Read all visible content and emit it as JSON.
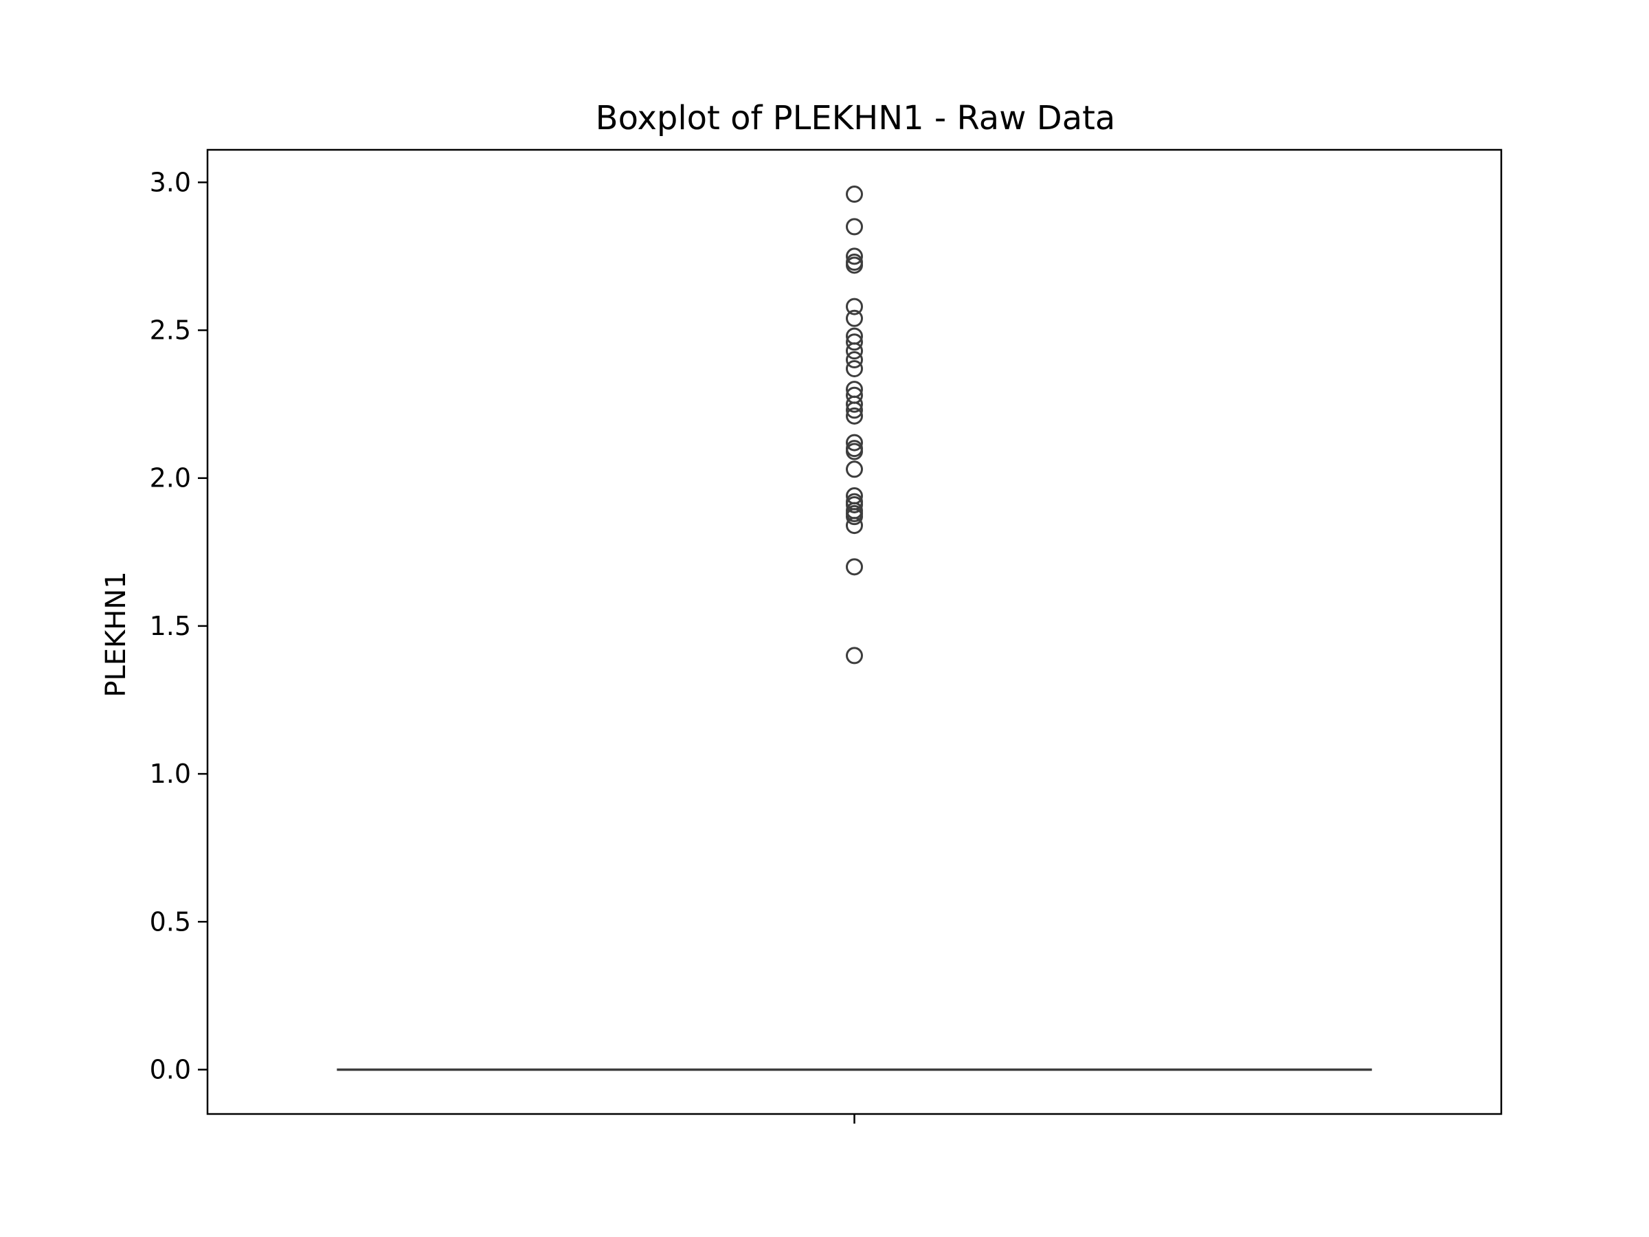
{
  "chart_data": {
    "type": "box",
    "title": "Boxplot of PLEKHN1 - Raw Data",
    "xlabel": "",
    "ylabel": "PLEKHN1",
    "ylim": [
      -0.15,
      3.11
    ],
    "yticks": [
      0.0,
      0.5,
      1.0,
      1.5,
      2.0,
      2.5,
      3.0
    ],
    "ytick_labels": [
      "0.0",
      "0.5",
      "1.0",
      "1.5",
      "2.0",
      "2.5",
      "3.0"
    ],
    "xticks": [
      ""
    ],
    "grid": false,
    "legend": false,
    "colors": {
      "box_line": "#3d3d3d",
      "frame": "#000000",
      "text": "#000000"
    },
    "boxes": [
      {
        "q1": 0.0,
        "median": 0.0,
        "q3": 0.0,
        "whisker_low": 0.0,
        "whisker_high": 0.0,
        "outliers": [
          2.96,
          2.85,
          2.75,
          2.73,
          2.72,
          2.58,
          2.54,
          2.48,
          2.46,
          2.43,
          2.4,
          2.37,
          2.3,
          2.28,
          2.25,
          2.23,
          2.21,
          2.12,
          2.1,
          2.09,
          2.03,
          1.94,
          1.92,
          1.91,
          1.89,
          1.88,
          1.87,
          1.84,
          1.7,
          1.4
        ]
      }
    ]
  }
}
